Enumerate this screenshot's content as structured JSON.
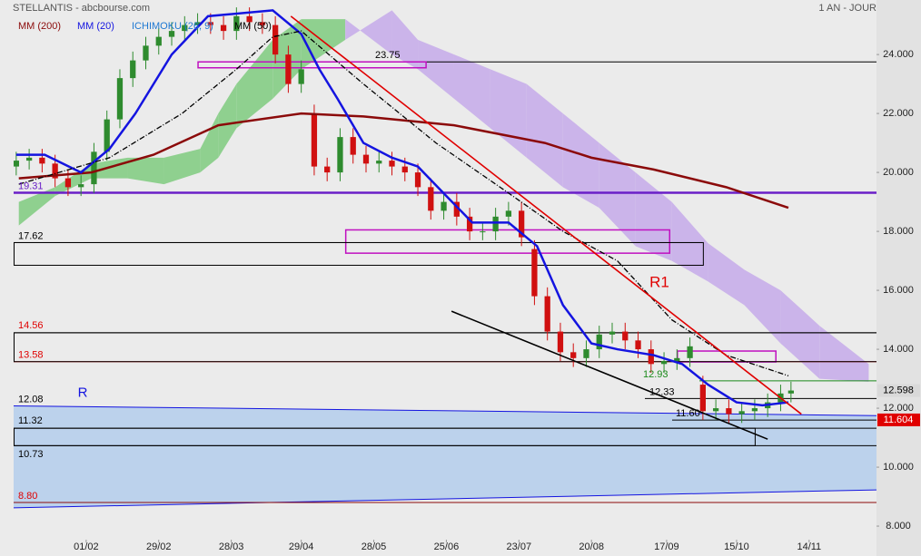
{
  "chart_data": {
    "type": "candlestick",
    "title": "STELLANTIS - abcbourse.com",
    "period": "1 AN - JOUR",
    "up_color": "#2e8b2e",
    "down_color": "#d01010",
    "xlim": [
      0,
      333
    ],
    "ylim": [
      7.54,
      25.85
    ],
    "yticks": [
      {
        "value": 8,
        "label": "8.000"
      },
      {
        "value": 10,
        "label": "10.000"
      },
      {
        "value": 12,
        "label": "12.000"
      },
      {
        "value": 14,
        "label": "14.000"
      },
      {
        "value": 16,
        "label": "16.000"
      },
      {
        "value": 18,
        "label": "18.000"
      },
      {
        "value": 20,
        "label": "20.000"
      },
      {
        "value": 22,
        "label": "22.000"
      },
      {
        "value": 24,
        "label": "24.000"
      }
    ],
    "xticks": [
      {
        "value": 28,
        "label": "01/02"
      },
      {
        "value": 56,
        "label": "29/02"
      },
      {
        "value": 84,
        "label": "28/03"
      },
      {
        "value": 111,
        "label": "29/04"
      },
      {
        "value": 139,
        "label": "28/05"
      },
      {
        "value": 167,
        "label": "25/06"
      },
      {
        "value": 195,
        "label": "23/07"
      },
      {
        "value": 223,
        "label": "20/08"
      },
      {
        "value": 252,
        "label": "17/09"
      },
      {
        "value": 279,
        "label": "15/10"
      },
      {
        "value": 307,
        "label": "14/11"
      }
    ],
    "x": [
      1,
      6,
      11,
      16,
      21,
      26,
      31,
      36,
      41,
      46,
      51,
      56,
      61,
      66,
      71,
      76,
      81,
      86,
      91,
      96,
      101,
      106,
      111,
      116,
      121,
      126,
      131,
      136,
      141,
      146,
      151,
      156,
      161,
      166,
      171,
      176,
      181,
      186,
      191,
      196,
      201,
      206,
      211,
      216,
      221,
      226,
      231,
      236,
      241,
      246,
      251,
      256,
      261,
      266,
      271,
      276,
      281,
      286,
      291,
      296,
      300
    ],
    "open": [
      20.2,
      20.4,
      20.5,
      20.3,
      19.8,
      19.5,
      19.6,
      20.7,
      21.8,
      23.2,
      23.8,
      24.3,
      24.6,
      24.8,
      25.0,
      25.1,
      25.0,
      24.8,
      25.3,
      25.1,
      25.0,
      24.0,
      23.0,
      22.0,
      20.2,
      20.0,
      21.2,
      20.6,
      20.3,
      20.4,
      20.2,
      20.0,
      19.5,
      18.7,
      19.0,
      18.5,
      18.0,
      18.0,
      18.5,
      18.7,
      17.4,
      15.8,
      14.6,
      13.9,
      13.7,
      14.0,
      14.5,
      14.6,
      14.3,
      14.0,
      13.5,
      13.6,
      13.7,
      12.8,
      11.9,
      12.0,
      11.8,
      11.9,
      12.0,
      12.2,
      12.5
    ],
    "high": [
      20.7,
      20.8,
      20.8,
      20.6,
      20.1,
      19.9,
      21.0,
      22.1,
      23.5,
      24.1,
      24.6,
      24.9,
      25.1,
      25.3,
      25.4,
      25.4,
      25.3,
      25.6,
      25.6,
      25.4,
      25.3,
      24.3,
      23.8,
      22.3,
      20.5,
      21.5,
      21.5,
      20.9,
      20.7,
      20.7,
      20.5,
      20.3,
      19.8,
      19.3,
      19.3,
      18.8,
      18.3,
      18.8,
      19.0,
      19.0,
      17.7,
      16.1,
      14.9,
      14.2,
      14.3,
      14.8,
      14.9,
      14.9,
      14.6,
      14.3,
      13.9,
      14.0,
      14.4,
      13.1,
      12.3,
      12.3,
      12.2,
      12.3,
      12.5,
      12.8,
      12.9
    ],
    "low": [
      19.9,
      20.1,
      20.0,
      19.5,
      19.2,
      19.2,
      19.3,
      20.4,
      21.5,
      22.9,
      23.5,
      24.0,
      24.3,
      24.5,
      24.7,
      24.7,
      24.5,
      24.5,
      24.8,
      24.7,
      23.7,
      22.7,
      22.7,
      19.9,
      19.7,
      19.7,
      20.3,
      20.0,
      20.0,
      19.9,
      19.7,
      19.2,
      18.4,
      18.4,
      18.2,
      17.7,
      17.7,
      17.7,
      18.2,
      17.5,
      15.5,
      14.3,
      13.6,
      13.4,
      13.4,
      13.7,
      14.2,
      14.0,
      13.7,
      13.2,
      13.2,
      13.3,
      13.4,
      11.6,
      11.6,
      11.5,
      11.5,
      11.6,
      11.7,
      11.9,
      12.2
    ],
    "close": [
      20.4,
      20.5,
      20.3,
      19.8,
      19.5,
      19.6,
      20.7,
      21.8,
      23.2,
      23.8,
      24.3,
      24.6,
      24.8,
      25.0,
      25.1,
      25.0,
      24.8,
      25.3,
      25.1,
      25.0,
      24.0,
      23.0,
      23.5,
      20.2,
      20.0,
      21.2,
      20.6,
      20.3,
      20.4,
      20.2,
      20.0,
      19.5,
      18.7,
      19.0,
      18.5,
      18.0,
      18.0,
      18.5,
      18.7,
      17.8,
      15.8,
      14.6,
      13.9,
      13.7,
      14.0,
      14.5,
      14.6,
      14.3,
      14.0,
      13.5,
      13.6,
      13.7,
      14.1,
      11.9,
      12.0,
      11.8,
      11.9,
      12.0,
      12.2,
      12.5,
      12.6
    ],
    "ichimoku": {
      "name": "ICHIMOKU (26, 9)",
      "legend_color": "#1e78d2",
      "up_color": "#8fd08f",
      "down_color": "#cbb4ea",
      "x": [
        2,
        16,
        30,
        44,
        58,
        72,
        79,
        86,
        100,
        111,
        128,
        146,
        156,
        170,
        184,
        198,
        212,
        226,
        240,
        254,
        268,
        282,
        296,
        311,
        330
      ],
      "span_a": [
        19.0,
        19.5,
        20.3,
        20.5,
        20.5,
        20.8,
        22.0,
        23.0,
        24.5,
        25.2,
        25.2,
        24.0,
        23.5,
        22.5,
        21.5,
        20.5,
        19.5,
        18.8,
        17.5,
        17.0,
        16.3,
        15.5,
        14.2,
        13.0,
        12.9
      ],
      "span_b": [
        18.2,
        19.2,
        19.8,
        19.8,
        19.6,
        20.0,
        20.5,
        21.5,
        22.5,
        23.5,
        24.5,
        25.5,
        24.5,
        24.0,
        23.5,
        23.0,
        22.0,
        21.0,
        20.0,
        19.0,
        17.6,
        16.7,
        16.0,
        14.8,
        13.5
      ]
    },
    "series": [
      {
        "name": "MM (200)",
        "color": "#8b0a0a",
        "x": [
          2,
          30,
          54,
          79,
          111,
          135,
          170,
          205,
          223,
          247,
          275,
          299
        ],
        "values": [
          19.8,
          20.0,
          20.6,
          21.6,
          22.0,
          21.9,
          21.6,
          21.0,
          20.5,
          20.1,
          19.5,
          18.8
        ]
      },
      {
        "name": "MM (20)",
        "color": "#1414e0",
        "x": [
          1,
          12,
          26,
          37,
          47,
          61,
          75,
          100,
          111,
          118,
          125,
          135,
          146,
          156,
          167,
          177,
          191,
          202,
          212,
          223,
          233,
          247,
          258,
          268,
          279,
          289,
          299
        ],
        "values": [
          20.6,
          20.6,
          20.0,
          20.8,
          22.0,
          24.0,
          25.3,
          25.5,
          24.7,
          23.5,
          22.5,
          21.0,
          20.5,
          20.2,
          19.2,
          18.3,
          18.3,
          17.5,
          15.5,
          14.2,
          14.0,
          13.8,
          13.5,
          12.8,
          12.2,
          12.1,
          12.2
        ]
      },
      {
        "name": "MM (50)",
        "color": "#000000",
        "dashed": true,
        "x": [
          2,
          37,
          65,
          86,
          100,
          111,
          135,
          163,
          191,
          212,
          233,
          254,
          275,
          299
        ],
        "values": [
          19.6,
          20.5,
          22.0,
          23.5,
          24.6,
          24.8,
          23.0,
          21.0,
          19.3,
          18.0,
          17.0,
          15.0,
          13.8,
          13.1
        ]
      }
    ],
    "support_zone": {
      "label": "R",
      "color": "#1414e0",
      "x": [
        0,
        333
      ],
      "top": [
        12.08,
        11.75
      ],
      "bottom": [
        8.62,
        9.23
      ]
    },
    "trendlines": [
      {
        "label": "R1",
        "color": "#e00000",
        "x": [
          107,
          304
        ],
        "y": [
          25.3,
          11.8
        ]
      },
      {
        "color": "#000000",
        "x": [
          169,
          291
        ],
        "y": [
          15.29,
          10.95
        ]
      }
    ],
    "levels": [
      {
        "value": 23.75,
        "color": "#000000"
      },
      {
        "value": 19.31,
        "color": "#6a1fc8"
      },
      {
        "value": 17.62,
        "color": "#000000"
      },
      {
        "value": 14.56,
        "color": "#e00000"
      },
      {
        "value": 13.58,
        "color": "#e00000"
      },
      {
        "value": 12.93,
        "color": "#1a8a1a"
      },
      {
        "value": 12.33,
        "color": "#000000"
      },
      {
        "value": 12.08,
        "color": "#000000"
      },
      {
        "value": 11.6,
        "label": "11.60",
        "color": "#000000"
      },
      {
        "value": 11.32,
        "color": "#000000"
      },
      {
        "value": 10.73,
        "color": "#000000"
      },
      {
        "value": 8.8,
        "label": "8.80",
        "color": "#e00000"
      }
    ],
    "boxes": [
      {
        "x": [
          71,
          159
        ],
        "y": [
          23.75,
          23.55
        ],
        "color": "#c010c0"
      },
      {
        "x": [
          128,
          253
        ],
        "y": [
          18.05,
          17.26
        ],
        "color": "#c010c0"
      },
      {
        "x": [
          256,
          294
        ],
        "y": [
          13.94,
          13.57
        ],
        "color": "#c010c0"
      },
      {
        "x": [
          0,
          266
        ],
        "y": [
          17.62,
          16.85
        ],
        "color": "#000000"
      },
      {
        "x": [
          0,
          333
        ],
        "y": [
          14.56,
          13.58
        ],
        "color": "#000000"
      },
      {
        "x": [
          0,
          286
        ],
        "y": [
          11.32,
          10.73
        ],
        "color": "#000000"
      }
    ],
    "price_tags": [
      {
        "value": 12.598,
        "color": "#d9d9d9",
        "text_color": "#000000"
      },
      {
        "value": 11.604,
        "color": "#e00000",
        "text_color": "#ffffff"
      }
    ]
  }
}
